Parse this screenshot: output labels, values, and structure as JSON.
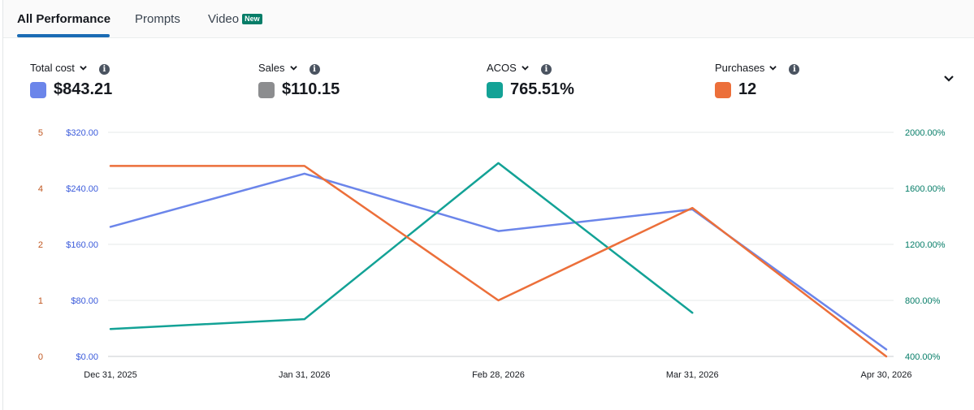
{
  "tabs": [
    {
      "label": "All Performance",
      "active": true
    },
    {
      "label": "Prompts",
      "active": false
    },
    {
      "label": "Video",
      "active": false,
      "badge": "New"
    }
  ],
  "metrics": [
    {
      "label": "Total cost",
      "value": "$843.21",
      "color": "#6b85ea",
      "icon": "chevron-down-icon"
    },
    {
      "label": "Sales",
      "value": "$110.15",
      "color": "#8c8d8f",
      "icon": "chevron-down-icon"
    },
    {
      "label": "ACOS",
      "value": "765.51%",
      "color": "#13a296",
      "icon": "chevron-down-icon"
    },
    {
      "label": "Purchases",
      "value": "12",
      "color": "#ec6f3a",
      "icon": "chevron-down-icon"
    }
  ],
  "info_glyph": "i",
  "chart_data": {
    "type": "line",
    "x": [
      "Dec 31, 2025",
      "Jan 31, 2026",
      "Feb 28, 2026",
      "Mar 31, 2026",
      "Apr 30, 2026"
    ],
    "grid": true,
    "axes": {
      "left_outer": {
        "color": "#c0561f",
        "ticks": [
          0,
          1,
          2,
          4,
          5
        ],
        "tick_labels": [
          "0",
          "1",
          "2",
          "4",
          "5"
        ]
      },
      "left_inner": {
        "color": "#3b5bdb",
        "ylim": [
          0,
          320
        ],
        "ticks": [
          0,
          80,
          160,
          240,
          320
        ],
        "tick_labels": [
          "$0.00",
          "$80.00",
          "$160.00",
          "$240.00",
          "$320.00"
        ]
      },
      "right": {
        "color": "#067d68",
        "ylim": [
          400,
          2000
        ],
        "ticks": [
          400,
          800,
          1200,
          1600,
          2000
        ],
        "tick_labels": [
          "400.00%",
          "800.00%",
          "1200.00%",
          "1600.00%",
          "2000.00%"
        ]
      }
    },
    "series": [
      {
        "metric": "Total cost",
        "axis": "left_inner",
        "color": "#6b85ea",
        "values": [
          185,
          261,
          179,
          210,
          10
        ]
      },
      {
        "metric": "ACOS",
        "axis": "right",
        "color": "#13a296",
        "values": [
          596,
          666,
          1780,
          712,
          null
        ]
      },
      {
        "metric": "Purchases",
        "axis": "left_outer",
        "color": "#ec6f3a",
        "values": [
          4.4,
          4.4,
          1.0,
          3.3,
          0
        ]
      }
    ]
  }
}
